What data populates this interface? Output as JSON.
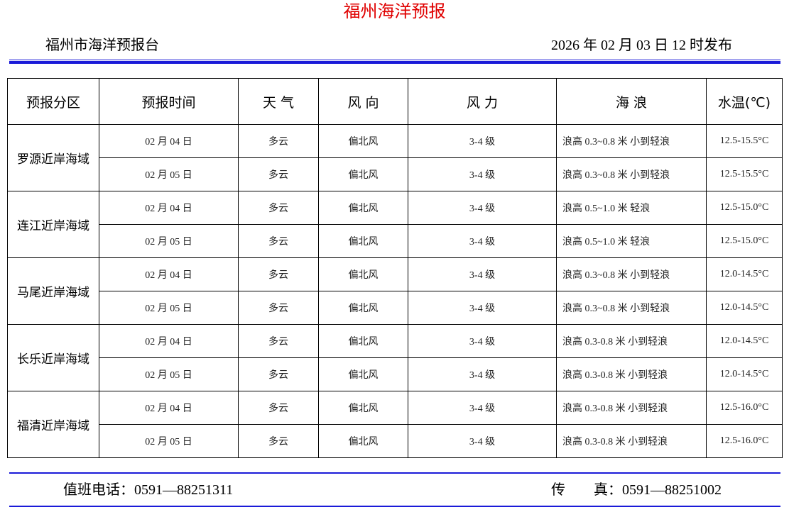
{
  "title": "福州海洋预报",
  "issuer": "福州市海洋预报台",
  "issue_time": "2026 年 02 月 03 日 12 时发布",
  "table": {
    "headers": {
      "zone": "预报分区",
      "time": "预报时间",
      "weather": "天 气",
      "wind_direction": "风 向",
      "wind_force": "风 力",
      "waves": "海 浪",
      "water_temp": "水温(℃)"
    },
    "zones": [
      {
        "name": "罗源近岸海域",
        "rows": [
          {
            "time": "02 月 04 日",
            "weather": "多云",
            "wind_direction": "偏北风",
            "wind_force": "3-4 级",
            "waves": "浪高 0.3~0.8 米 小到轻浪",
            "water_temp": "12.5-15.5°C"
          },
          {
            "time": "02 月 05 日",
            "weather": "多云",
            "wind_direction": "偏北风",
            "wind_force": "3-4 级",
            "waves": "浪高 0.3~0.8 米 小到轻浪",
            "water_temp": "12.5-15.5°C"
          }
        ]
      },
      {
        "name": "连江近岸海域",
        "rows": [
          {
            "time": "02 月 04 日",
            "weather": "多云",
            "wind_direction": "偏北风",
            "wind_force": "3-4 级",
            "waves": "浪高 0.5~1.0 米 轻浪",
            "water_temp": "12.5-15.0°C"
          },
          {
            "time": "02 月 05 日",
            "weather": "多云",
            "wind_direction": "偏北风",
            "wind_force": "3-4 级",
            "waves": "浪高 0.5~1.0 米 轻浪",
            "water_temp": "12.5-15.0°C"
          }
        ]
      },
      {
        "name": "马尾近岸海域",
        "rows": [
          {
            "time": "02 月 04 日",
            "weather": "多云",
            "wind_direction": "偏北风",
            "wind_force": "3-4 级",
            "waves": "浪高 0.3~0.8 米 小到轻浪",
            "water_temp": "12.0-14.5°C"
          },
          {
            "time": "02 月 05 日",
            "weather": "多云",
            "wind_direction": "偏北风",
            "wind_force": "3-4 级",
            "waves": "浪高 0.3~0.8 米 小到轻浪",
            "water_temp": "12.0-14.5°C"
          }
        ]
      },
      {
        "name": "长乐近岸海域",
        "rows": [
          {
            "time": "02 月 04 日",
            "weather": "多云",
            "wind_direction": "偏北风",
            "wind_force": "3-4 级",
            "waves": "浪高 0.3-0.8 米 小到轻浪",
            "water_temp": "12.0-14.5°C"
          },
          {
            "time": "02 月 05 日",
            "weather": "多云",
            "wind_direction": "偏北风",
            "wind_force": "3-4 级",
            "waves": "浪高 0.3-0.8 米 小到轻浪",
            "water_temp": "12.0-14.5°C"
          }
        ]
      },
      {
        "name": "福清近岸海域",
        "rows": [
          {
            "time": "02 月 04 日",
            "weather": "多云",
            "wind_direction": "偏北风",
            "wind_force": "3-4 级",
            "waves": "浪高 0.3-0.8 米 小到轻浪",
            "water_temp": "12.5-16.0°C"
          },
          {
            "time": "02 月 05 日",
            "weather": "多云",
            "wind_direction": "偏北风",
            "wind_force": "3-4 级",
            "waves": "浪高 0.3-0.8 米 小到轻浪",
            "water_temp": "12.5-16.0°C"
          }
        ]
      }
    ]
  },
  "footer": {
    "duty_phone": "值班电话：0591—88251311",
    "fax": "传　　真：0591—88251002"
  },
  "colors": {
    "title": "#e00000",
    "rule": "#1a1ad8"
  }
}
